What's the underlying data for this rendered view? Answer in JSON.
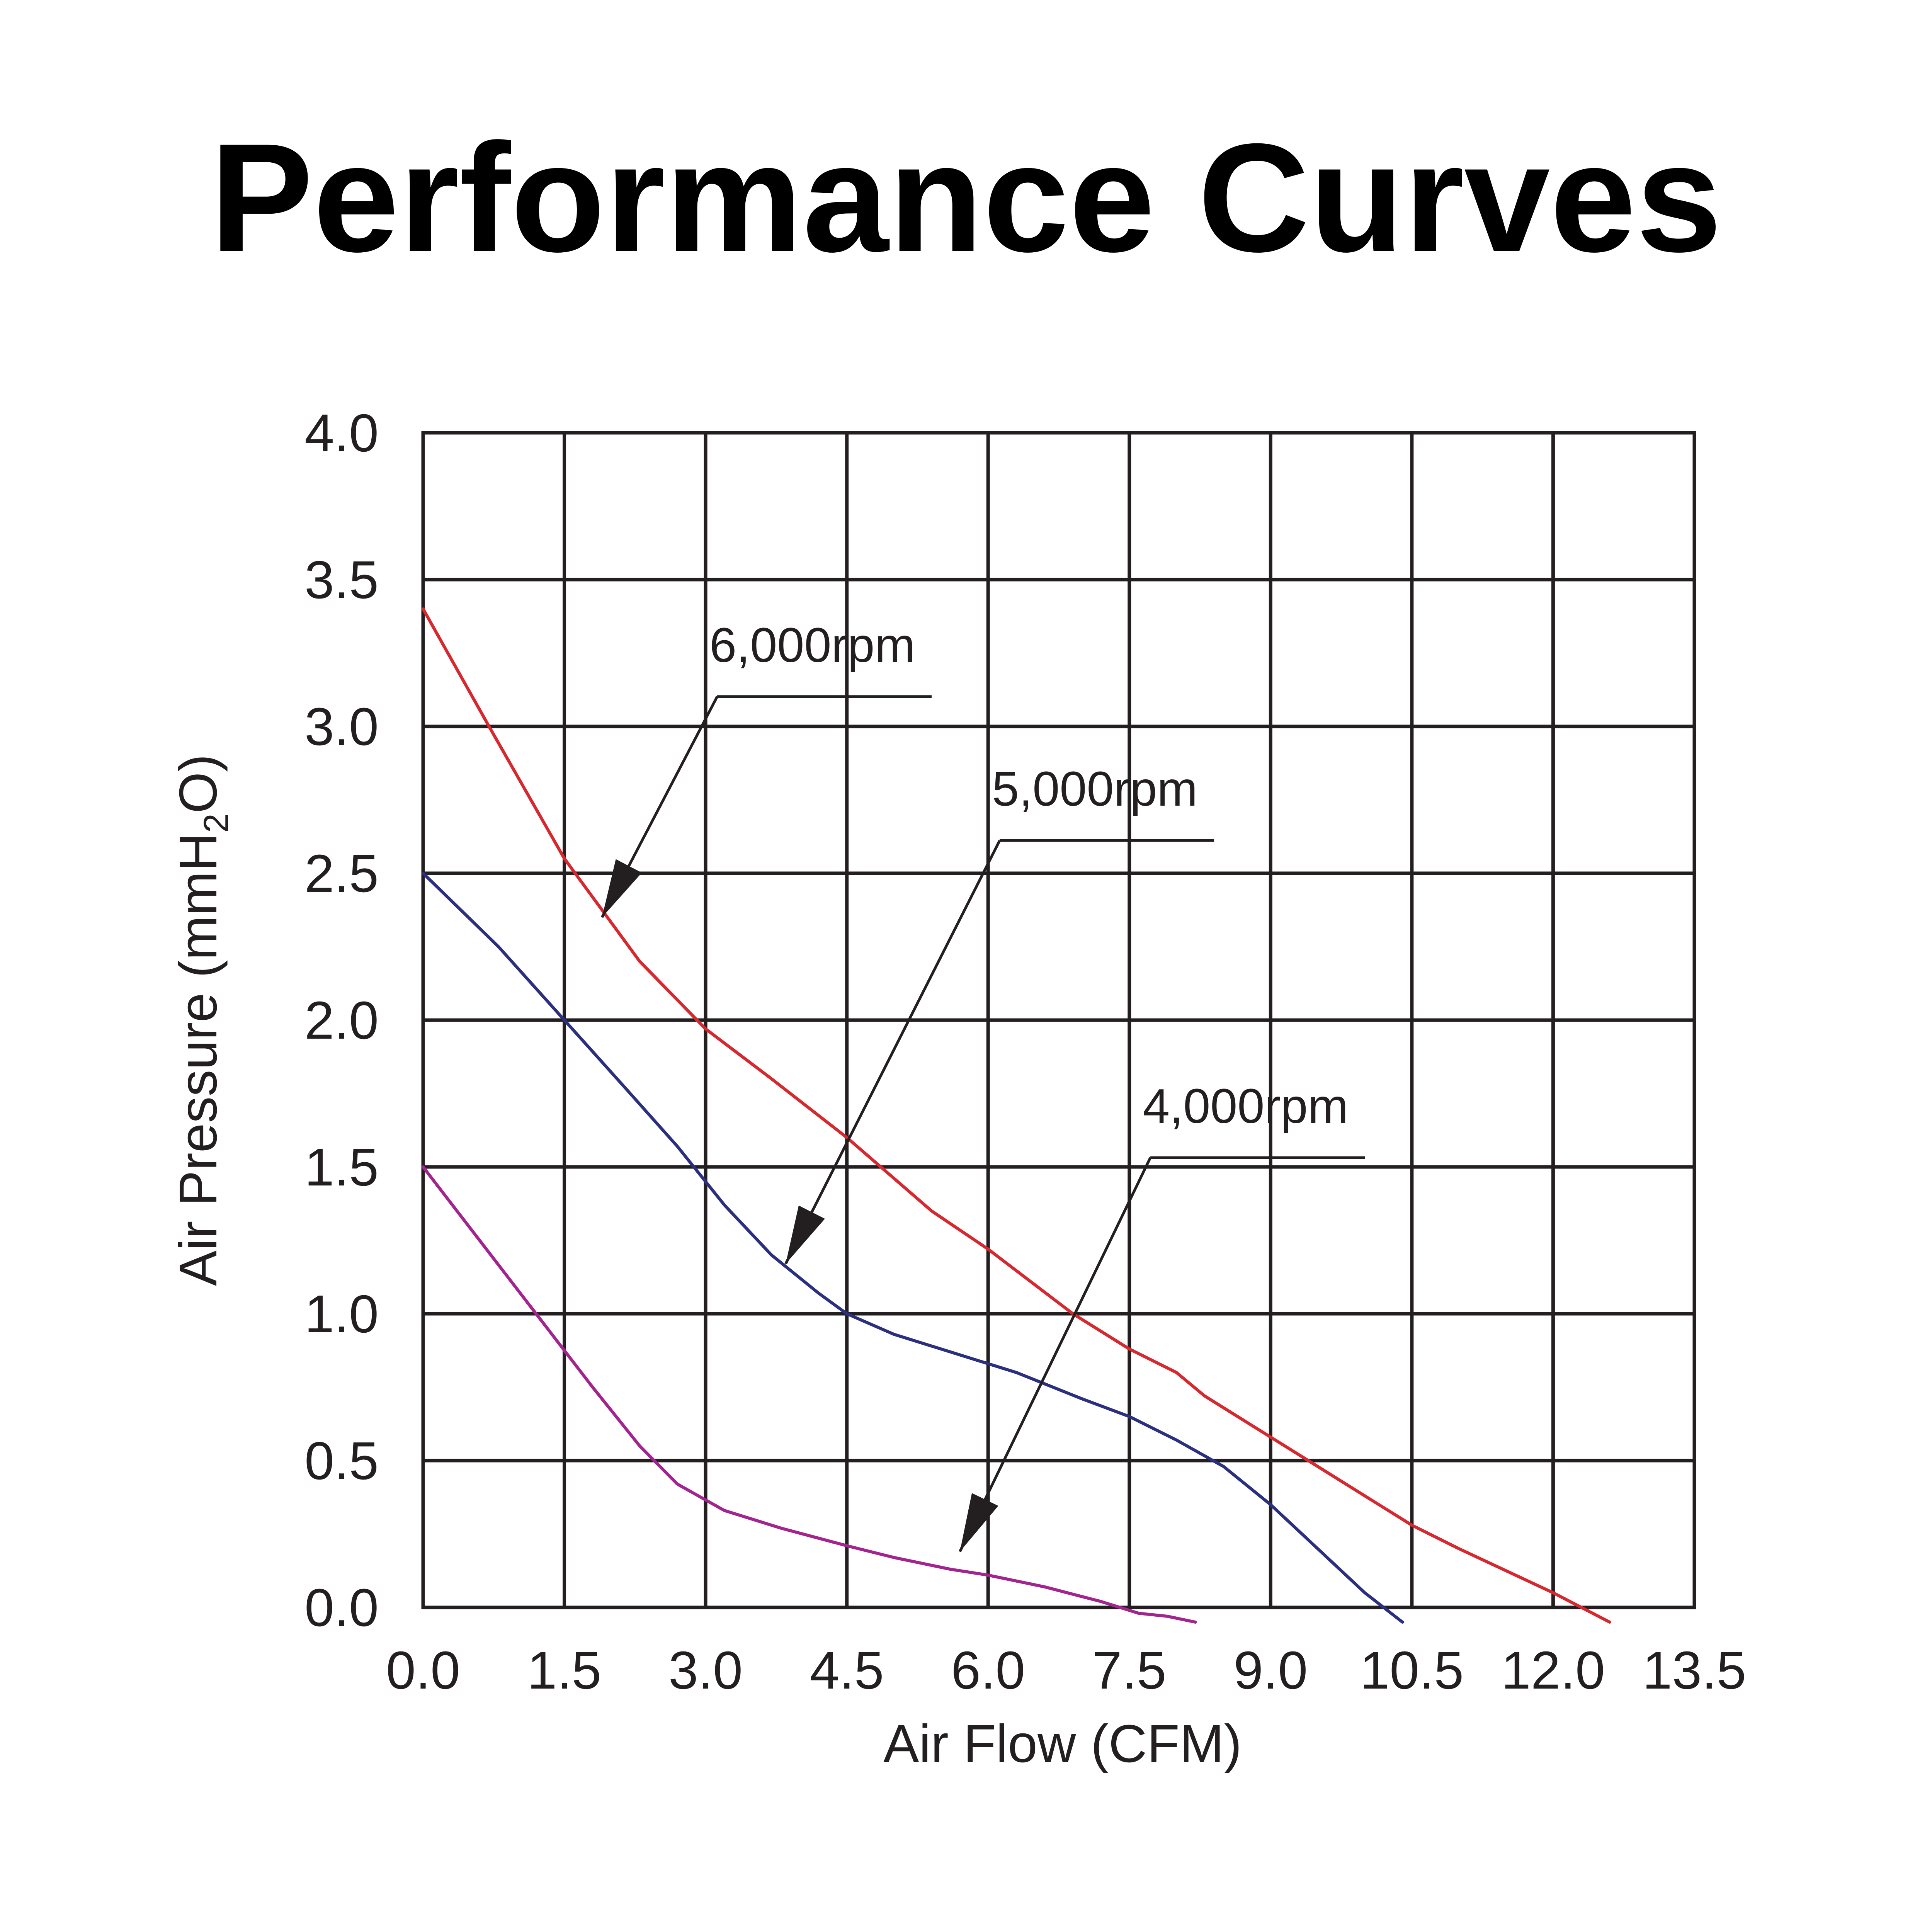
{
  "chart_data": {
    "type": "line",
    "title": "Performance Curves",
    "xlabel": "Air Flow (CFM)",
    "ylabel_prefix": "Air Pressure (mmH",
    "ylabel_sub": "2",
    "ylabel_suffix": "O)",
    "xlim": [
      0,
      13.5
    ],
    "ylim": [
      0,
      4.0
    ],
    "x_ticks": [
      "0.0",
      "1.5",
      "3.0",
      "4.5",
      "6.0",
      "7.5",
      "9.0",
      "10.5",
      "12.0",
      "13.5"
    ],
    "y_ticks": [
      "0.0",
      "0.5",
      "1.0",
      "1.5",
      "2.0",
      "2.5",
      "3.0",
      "3.5",
      "4.0"
    ],
    "grid": true,
    "series": [
      {
        "name": "6,000rpm",
        "color": "#d7282f",
        "x": [
          0.0,
          0.7,
          1.5,
          2.3,
          3.0,
          3.7,
          4.5,
          5.4,
          6.0,
          6.9,
          7.5,
          8.0,
          8.3,
          9.0,
          10.0,
          10.5,
          11.0,
          12.0,
          12.6
        ],
        "y": [
          3.4,
          3.0,
          2.55,
          2.2,
          1.97,
          1.8,
          1.6,
          1.35,
          1.22,
          1.0,
          0.88,
          0.8,
          0.72,
          0.58,
          0.38,
          0.28,
          0.2,
          0.05,
          -0.05
        ],
        "label_x": 3.0,
        "label_y": 3.22,
        "shelf_x_end": 5.4,
        "arrow_tip_x": 1.9,
        "arrow_tip_y": 2.35
      },
      {
        "name": "5,000rpm",
        "color": "#2b2f7f",
        "x": [
          0.0,
          0.8,
          1.5,
          2.2,
          2.7,
          3.2,
          3.7,
          4.2,
          4.5,
          5.0,
          5.5,
          6.0,
          6.3,
          7.0,
          7.5,
          8.0,
          8.5,
          9.0,
          9.5,
          10.0,
          10.4
        ],
        "y": [
          2.5,
          2.25,
          2.0,
          1.75,
          1.57,
          1.37,
          1.2,
          1.07,
          1.0,
          0.93,
          0.88,
          0.83,
          0.8,
          0.71,
          0.65,
          0.57,
          0.48,
          0.35,
          0.2,
          0.05,
          -0.05
        ],
        "label_x": 6.0,
        "label_y": 2.73,
        "shelf_x_end": 8.4,
        "arrow_tip_x": 3.85,
        "arrow_tip_y": 1.17
      },
      {
        "name": "4,000rpm",
        "color": "#a3248f",
        "x": [
          0.0,
          0.6,
          1.2,
          1.8,
          2.3,
          2.7,
          3.2,
          3.8,
          4.5,
          5.0,
          5.6,
          6.0,
          6.6,
          7.2,
          7.6,
          7.9,
          8.2
        ],
        "y": [
          1.5,
          1.25,
          1.0,
          0.75,
          0.55,
          0.42,
          0.33,
          0.27,
          0.21,
          0.17,
          0.13,
          0.11,
          0.07,
          0.02,
          -0.02,
          -0.03,
          -0.05
        ],
        "label_x": 7.6,
        "label_y": 1.65,
        "shelf_x_end": 10.0,
        "arrow_tip_x": 5.7,
        "arrow_tip_y": 0.19
      }
    ]
  }
}
